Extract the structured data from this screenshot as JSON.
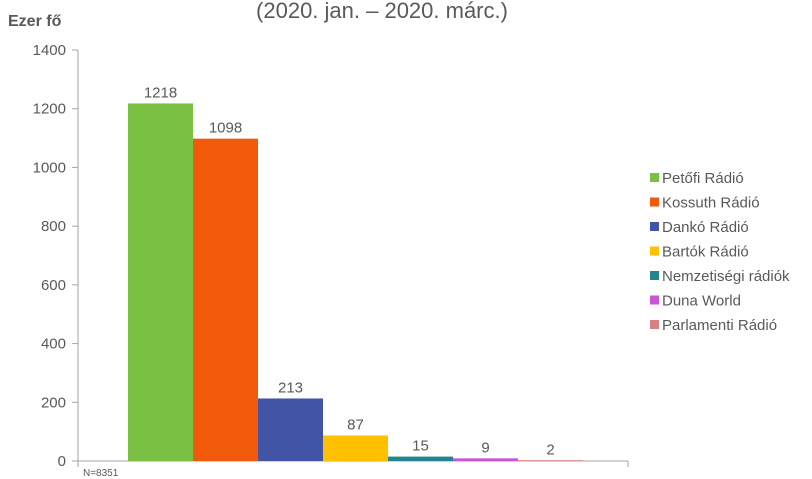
{
  "chart_data": {
    "type": "bar",
    "title": "(2020. jan. – 2020. márc.)",
    "ylabel": "Ezer fő",
    "xlabel": "",
    "ylim": [
      0,
      1400
    ],
    "yticks": [
      0,
      200,
      400,
      600,
      800,
      1000,
      1200,
      1400
    ],
    "grid": false,
    "legend_position": "right",
    "note": "N=8351",
    "series": [
      {
        "name": "Petőfi Rádió",
        "value": 1218,
        "color": "#7ac143"
      },
      {
        "name": "Kossuth Rádió",
        "value": 1098,
        "color": "#f05a0a"
      },
      {
        "name": "Dankó Rádió",
        "value": 213,
        "color": "#4254a6"
      },
      {
        "name": "Bartók Rádió",
        "value": 87,
        "color": "#ffc000"
      },
      {
        "name": "Nemzetiségi rádiók",
        "value": 15,
        "color": "#23858f"
      },
      {
        "name": "Duna World",
        "value": 9,
        "color": "#c955d4"
      },
      {
        "name": "Parlamenti Rádió",
        "value": 2,
        "color": "#d98081"
      }
    ]
  }
}
